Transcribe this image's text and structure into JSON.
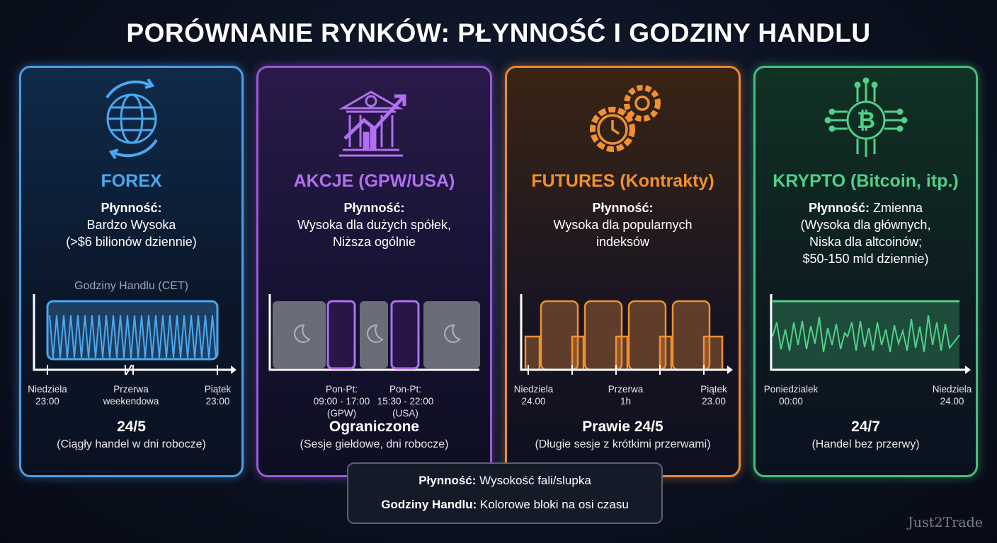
{
  "title": "PORÓWNANIE RYNKÓW: PŁYNNOŚĆ I GODZINY HANDLU",
  "colors": {
    "forex": "#4a9ee8",
    "akcje": "#9a5ad8",
    "futures": "#e8893a",
    "krypto": "#44c07a"
  },
  "cards": [
    {
      "icon": "globe-icon",
      "name": "FOREX",
      "liq_label": "Płynność:",
      "liq_text": [
        "Bardzo Wysoka",
        "(>$6 bilionów dziennie)"
      ],
      "chart_title": "Godziny Handlu (CET)",
      "ticks": [
        [
          "Niedziela",
          "23:00"
        ],
        [
          "Przerwa",
          "weekendowa"
        ],
        [
          "Piątek",
          "23:00"
        ]
      ],
      "summary": "24/5",
      "summary_sub": "(Ciągły handel w dni robocze)"
    },
    {
      "icon": "bank-growth-icon",
      "name": "AKCJE (GPW/USA)",
      "liq_label": "Płynność:",
      "liq_text": [
        "Wysoka dla dużych spółek,",
        "Niższa ogólnie"
      ],
      "ticks": [
        [
          "Pon-Pt:",
          "09:00 - 17:00",
          "(GPW)"
        ],
        [
          "Pon-Pt:",
          "15:30 - 22:00",
          "(USA)"
        ]
      ],
      "summary": "Ograniczone",
      "summary_sub": "(Sesje giełdowe, dni robocze)"
    },
    {
      "icon": "gears-clock-icon",
      "name": "FUTURES (Kontrakty)",
      "liq_label": "Płynność:",
      "liq_text": [
        "Wysoka dla popularnych",
        "indeksów"
      ],
      "ticks": [
        [
          "Niedziela",
          "24.00"
        ],
        [
          "Przerwa",
          "1h"
        ],
        [
          "Piątek",
          "23.00"
        ]
      ],
      "summary": "Prawie 24/5",
      "summary_sub": "(Długie sesje z krótkimi przerwami)"
    },
    {
      "icon": "bitcoin-circuit-icon",
      "name": "KRYPTO (Bitcoin, itp.)",
      "liq_label": "Płynność:",
      "liq_text": [
        "Zmienna",
        "(Wysoka dla głównych,",
        "Niska dla altcoinów;",
        "$50-150 mld dziennie)"
      ],
      "ticks": [
        [
          "Poniedzialek",
          "00:00"
        ],
        [
          "Niedziela",
          "24.00"
        ]
      ],
      "summary": "24/7",
      "summary_sub": "(Handel bez przerwy)"
    }
  ],
  "legend": {
    "row1_label": "Płynność:",
    "row1_text": "Wysokość fali/slupka",
    "row2_label": "Godziny Handlu:",
    "row2_text": "Kolorowe bloki na osi czasu"
  },
  "watermark": "Just2Trade"
}
